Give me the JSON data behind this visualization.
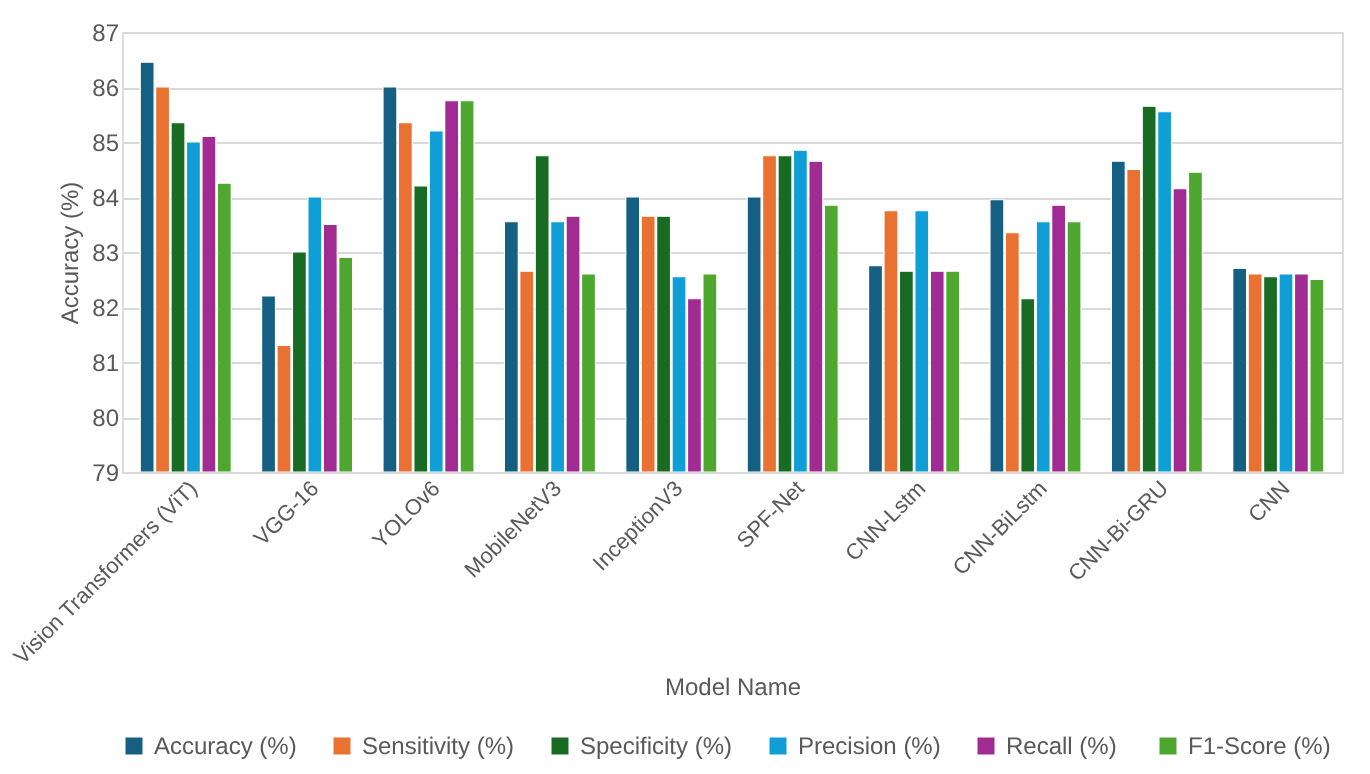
{
  "chart_data": {
    "type": "bar",
    "xlabel": "Model Name",
    "ylabel": "Accuracy (%)",
    "categories": [
      "Vision Transformers (ViT)",
      "VGG-16",
      "YOLOv6",
      "MobileNetV3",
      "InceptionV3",
      "SPF-Net",
      "CNN-Lstm",
      "CNN-BiLstm",
      "CNN-Bi-GRU",
      "CNN"
    ],
    "series": [
      {
        "name": "Accuracy (%)",
        "color": "#156082",
        "values": [
          86.45,
          82.2,
          86.0,
          83.55,
          84.0,
          84.0,
          82.75,
          83.95,
          84.65,
          82.7
        ]
      },
      {
        "name": "Sensitivity (%)",
        "color": "#e97132",
        "values": [
          86.0,
          81.3,
          85.35,
          82.65,
          83.65,
          84.75,
          83.75,
          83.35,
          84.5,
          82.6
        ]
      },
      {
        "name": "Specificity (%)",
        "color": "#196b24",
        "values": [
          85.35,
          83.0,
          84.2,
          84.75,
          83.65,
          84.75,
          82.65,
          82.15,
          85.65,
          82.55
        ]
      },
      {
        "name": "Precision (%)",
        "color": "#0f9ed5",
        "values": [
          85.0,
          84.0,
          85.2,
          83.55,
          82.55,
          84.85,
          83.75,
          83.55,
          85.55,
          82.6
        ]
      },
      {
        "name": "Recall  (%)",
        "color": "#a02b93",
        "values": [
          85.1,
          83.5,
          85.75,
          83.65,
          82.15,
          84.65,
          82.65,
          83.85,
          84.15,
          82.6
        ]
      },
      {
        "name": "F1-Score (%)",
        "color": "#4ea72e",
        "values": [
          84.25,
          82.9,
          85.75,
          82.6,
          82.6,
          83.85,
          82.65,
          83.55,
          84.45,
          82.5
        ]
      }
    ],
    "ylim": [
      79,
      87
    ],
    "yticks": [
      79,
      80,
      81,
      82,
      83,
      84,
      85,
      86,
      87
    ],
    "grid": "y",
    "legend": "bottom"
  }
}
